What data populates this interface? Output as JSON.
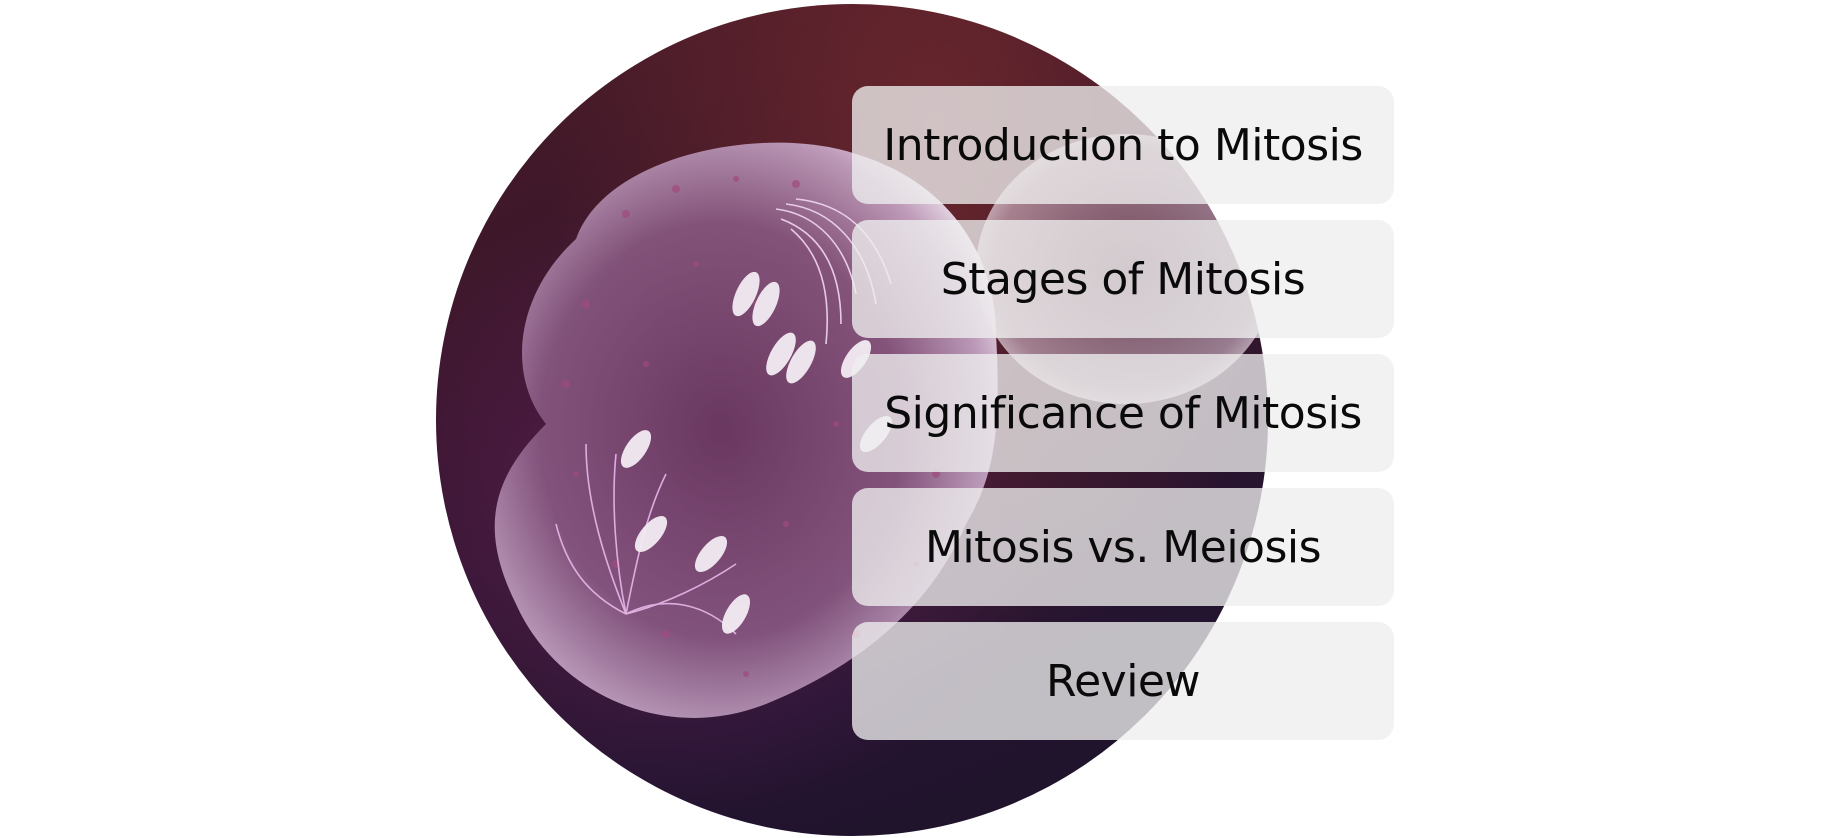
{
  "menu": {
    "items": [
      {
        "label": "Introduction to Mitosis"
      },
      {
        "label": "Stages of Mitosis"
      },
      {
        "label": "Significance of Mitosis"
      },
      {
        "label": "Mitosis vs. Meiosis"
      },
      {
        "label": "Review"
      }
    ]
  },
  "image": {
    "subject": "dividing-cell-illustration"
  },
  "colors": {
    "menu_background": "#eeeeee",
    "menu_text": "#0a0a0a",
    "page_background": "#ffffff"
  }
}
